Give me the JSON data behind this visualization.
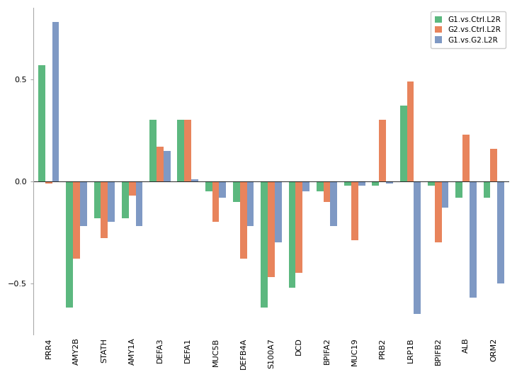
{
  "categories": [
    "PRR4",
    "AMY2B",
    "STATH",
    "AMY1A",
    "DEFA3",
    "DEFA1",
    "MUC5B",
    "DEFB4A",
    "S100A7",
    "DCD",
    "BPIFA2",
    "MUC19",
    "PRB2",
    "LRP1B",
    "BPIFB2",
    "ALB",
    "ORM2"
  ],
  "G1_vs_Ctrl": [
    0.57,
    -0.62,
    -0.18,
    -0.18,
    0.3,
    0.3,
    -0.05,
    -0.1,
    -0.62,
    -0.52,
    -0.05,
    -0.02,
    -0.02,
    0.37,
    -0.02,
    -0.08,
    -0.08
  ],
  "G2_vs_Ctrl": [
    -0.01,
    -0.38,
    -0.28,
    -0.07,
    0.17,
    0.3,
    -0.2,
    -0.38,
    -0.47,
    -0.45,
    -0.1,
    -0.29,
    0.3,
    0.49,
    -0.3,
    0.23,
    0.16
  ],
  "G1_vs_G2": [
    0.78,
    -0.22,
    -0.2,
    -0.22,
    0.15,
    0.01,
    -0.08,
    -0.22,
    -0.3,
    -0.05,
    -0.22,
    -0.02,
    -0.01,
    -0.65,
    -0.13,
    -0.57,
    -0.5
  ],
  "legend": [
    "G1.vs.Ctrl.L2R",
    "G2.vs.Ctrl.L2R",
    "G1.vs.G2.L2R"
  ],
  "colors": [
    "#5cb87f",
    "#e8845c",
    "#7f99c4"
  ],
  "bar_width": 0.25,
  "ylim": [
    -0.75,
    0.85
  ],
  "yticks": [
    -0.5,
    0.0,
    0.5
  ]
}
